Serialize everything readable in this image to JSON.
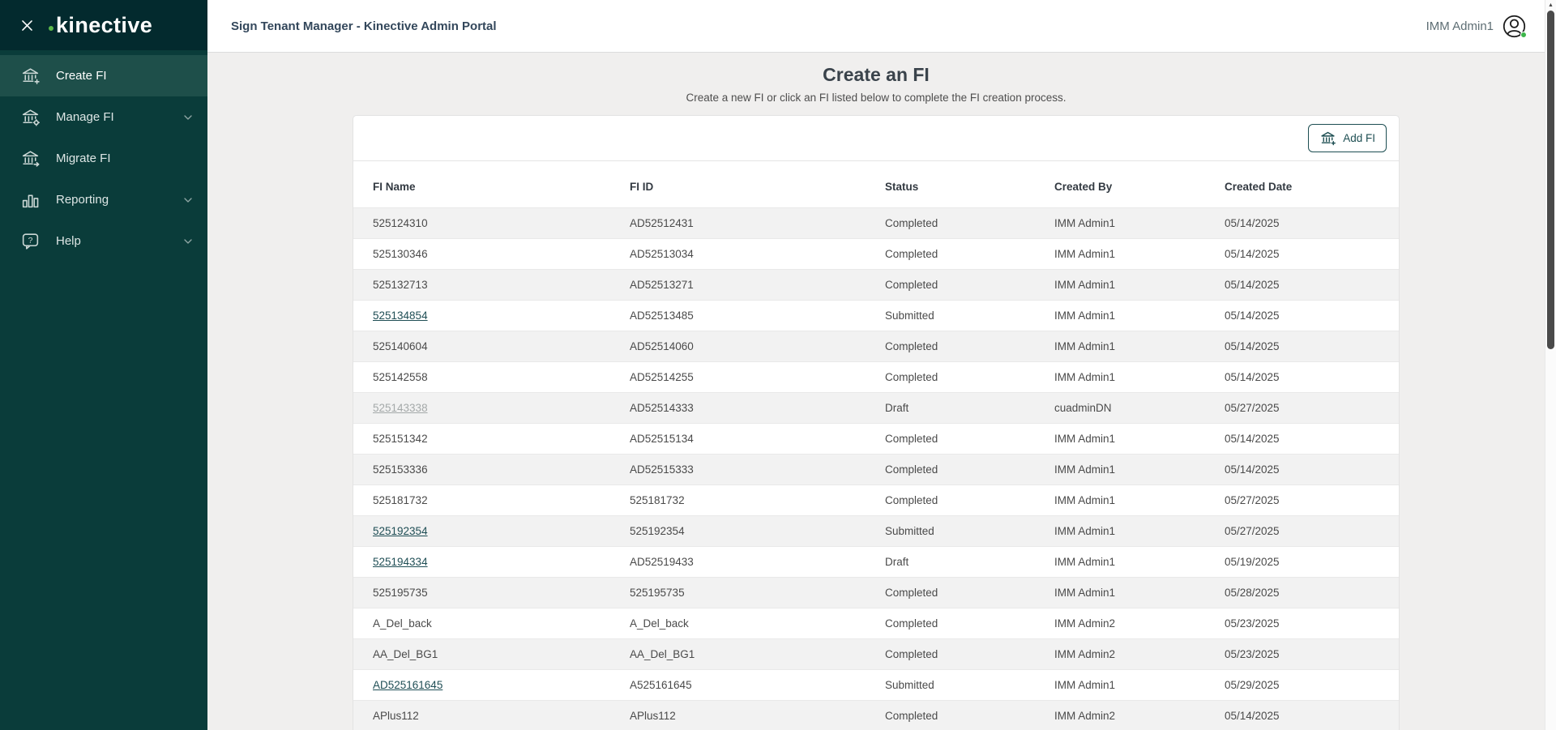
{
  "colors": {
    "sidebar_bg": "#0a3c3a",
    "sidebar_logo_band": "#032a2e",
    "sidebar_active_item": "#1e4f4a",
    "accent_teal": "#1d4e52",
    "link": "#1f4e55",
    "link_muted": "#a4a9a9",
    "brand_green_dot": "#5cb84a",
    "presence_green": "#3cb54a",
    "row_stripe": "#f2f2f2",
    "content_bg": "#f0efee",
    "scroll_thumb": "#4a4a4a"
  },
  "brand": {
    "logo_text": "kinective"
  },
  "header": {
    "title": "Sign Tenant Manager - Kinective Admin Portal",
    "user_name": "IMM Admin1",
    "user_icon": "account-circle-icon",
    "presence": "online"
  },
  "sidebar": {
    "close_icon": "close-icon",
    "items": [
      {
        "label": "Create FI",
        "icon": "bank-plus-icon",
        "active": true,
        "expandable": false
      },
      {
        "label": "Manage FI",
        "icon": "bank-gear-icon",
        "active": false,
        "expandable": true
      },
      {
        "label": "Migrate FI",
        "icon": "bank-arrow-icon",
        "active": false,
        "expandable": false
      },
      {
        "label": "Reporting",
        "icon": "bar-chart-icon",
        "active": false,
        "expandable": true
      },
      {
        "label": "Help",
        "icon": "help-bubble-icon",
        "active": false,
        "expandable": true
      }
    ]
  },
  "main": {
    "title": "Create an FI",
    "subtitle": "Create a new FI or click an FI listed below to complete the FI creation process.",
    "add_button_label": "Add FI",
    "add_button_icon": "bank-plus-icon"
  },
  "table": {
    "columns": [
      "FI Name",
      "FI ID",
      "Status",
      "Created By",
      "Created Date"
    ],
    "rows": [
      {
        "fi_name": "525124310",
        "fi_id": "AD52512431",
        "status": "Completed",
        "created_by": "IMM Admin1",
        "created_date": "05/14/2025",
        "link": null
      },
      {
        "fi_name": "525130346",
        "fi_id": "AD52513034",
        "status": "Completed",
        "created_by": "IMM Admin1",
        "created_date": "05/14/2025",
        "link": null
      },
      {
        "fi_name": "525132713",
        "fi_id": "AD52513271",
        "status": "Completed",
        "created_by": "IMM Admin1",
        "created_date": "05/14/2025",
        "link": null
      },
      {
        "fi_name": "525134854",
        "fi_id": "AD52513485",
        "status": "Submitted",
        "created_by": "IMM Admin1",
        "created_date": "05/14/2025",
        "link": "active"
      },
      {
        "fi_name": "525140604",
        "fi_id": "AD52514060",
        "status": "Completed",
        "created_by": "IMM Admin1",
        "created_date": "05/14/2025",
        "link": null
      },
      {
        "fi_name": "525142558",
        "fi_id": "AD52514255",
        "status": "Completed",
        "created_by": "IMM Admin1",
        "created_date": "05/14/2025",
        "link": null
      },
      {
        "fi_name": "525143338",
        "fi_id": "AD52514333",
        "status": "Draft",
        "created_by": "cuadminDN",
        "created_date": "05/27/2025",
        "link": "muted"
      },
      {
        "fi_name": "525151342",
        "fi_id": "AD52515134",
        "status": "Completed",
        "created_by": "IMM Admin1",
        "created_date": "05/14/2025",
        "link": null
      },
      {
        "fi_name": "525153336",
        "fi_id": "AD52515333",
        "status": "Completed",
        "created_by": "IMM Admin1",
        "created_date": "05/14/2025",
        "link": null
      },
      {
        "fi_name": "525181732",
        "fi_id": "525181732",
        "status": "Completed",
        "created_by": "IMM Admin1",
        "created_date": "05/27/2025",
        "link": null
      },
      {
        "fi_name": "525192354",
        "fi_id": "525192354",
        "status": "Submitted",
        "created_by": "IMM Admin1",
        "created_date": "05/27/2025",
        "link": "active"
      },
      {
        "fi_name": "525194334",
        "fi_id": "AD52519433",
        "status": "Draft",
        "created_by": "IMM Admin1",
        "created_date": "05/19/2025",
        "link": "active"
      },
      {
        "fi_name": "525195735",
        "fi_id": "525195735",
        "status": "Completed",
        "created_by": "IMM Admin1",
        "created_date": "05/28/2025",
        "link": null
      },
      {
        "fi_name": "A_Del_back",
        "fi_id": "A_Del_back",
        "status": "Completed",
        "created_by": "IMM Admin2",
        "created_date": "05/23/2025",
        "link": null
      },
      {
        "fi_name": "AA_Del_BG1",
        "fi_id": "AA_Del_BG1",
        "status": "Completed",
        "created_by": "IMM Admin2",
        "created_date": "05/23/2025",
        "link": null
      },
      {
        "fi_name": "AD525161645",
        "fi_id": "A525161645",
        "status": "Submitted",
        "created_by": "IMM Admin1",
        "created_date": "05/29/2025",
        "link": "active"
      },
      {
        "fi_name": "APlus112",
        "fi_id": "APlus112",
        "status": "Completed",
        "created_by": "IMM Admin2",
        "created_date": "05/14/2025",
        "link": null
      }
    ]
  },
  "scrollbar": {
    "thumb_position": "top",
    "arrow": "up"
  }
}
